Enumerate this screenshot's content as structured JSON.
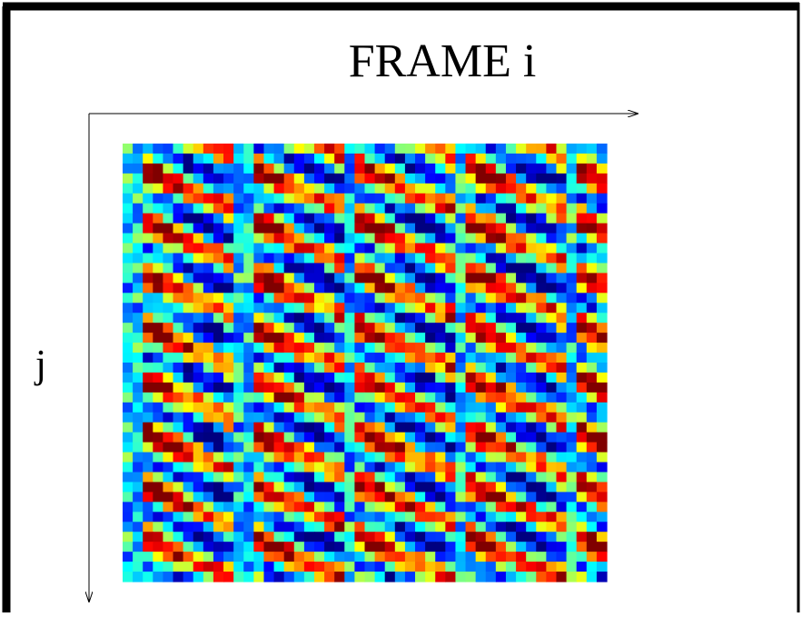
{
  "title": "FRAME i",
  "axis_label": "j"
}
